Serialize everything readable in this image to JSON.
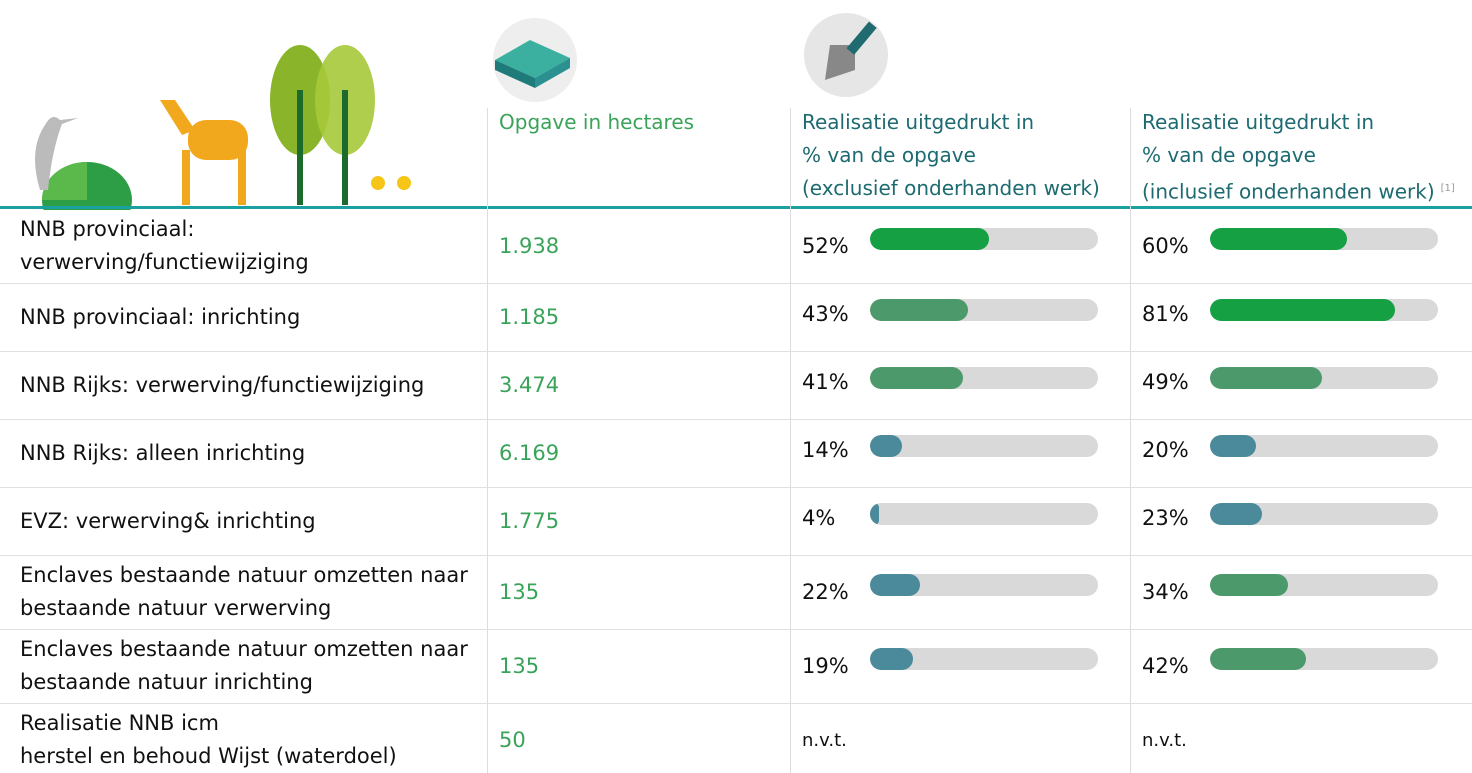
{
  "header": {
    "columns": [
      {
        "lines": [
          "Opgave in hectares"
        ]
      },
      {
        "lines": [
          "Realisatie uitgedrukt in",
          "% van de opgave",
          "(exclusief onderhanden werk)"
        ]
      },
      {
        "lines": [
          "Realisatie uitgedrukt in",
          "% van de opgave",
          "(inclusief onderhanden werk)"
        ],
        "note": "[1]"
      }
    ]
  },
  "table": {
    "rows": [
      {
        "label": [
          "NNB provinciaal:",
          "verwerving/functiewijziging"
        ],
        "hectares": "1.938",
        "excl": {
          "value": 52,
          "label": "52%",
          "color": "#15a044"
        },
        "incl": {
          "value": 60,
          "label": "60%",
          "color": "#15a044"
        }
      },
      {
        "label": [
          "NNB provinciaal: inrichting"
        ],
        "hectares": "1.185",
        "excl": {
          "value": 43,
          "label": "43%",
          "color": "#4c9a6c"
        },
        "incl": {
          "value": 81,
          "label": "81%",
          "color": "#15a044"
        }
      },
      {
        "label": [
          "NNB Rijks: verwerving/functiewijziging"
        ],
        "hectares": "3.474",
        "excl": {
          "value": 41,
          "label": "41%",
          "color": "#4c9a6c"
        },
        "incl": {
          "value": 49,
          "label": "49%",
          "color": "#4c9a6c"
        }
      },
      {
        "label": [
          "NNB Rijks: alleen inrichting"
        ],
        "hectares": "6.169",
        "excl": {
          "value": 14,
          "label": "14%",
          "color": "#4a8a9b"
        },
        "incl": {
          "value": 20,
          "label": "20%",
          "color": "#4a8a9b"
        }
      },
      {
        "label": [
          "EVZ: verwerving& inrichting"
        ],
        "hectares": "1.775",
        "excl": {
          "value": 4,
          "label": "4%",
          "color": "#4a8a9b"
        },
        "incl": {
          "value": 23,
          "label": "23%",
          "color": "#4a8a9b"
        }
      },
      {
        "label": [
          "Enclaves bestaande natuur omzetten naar",
          "bestaande natuur verwerving"
        ],
        "hectares": "135",
        "excl": {
          "value": 22,
          "label": "22%",
          "color": "#4a8a9b"
        },
        "incl": {
          "value": 34,
          "label": "34%",
          "color": "#4c9a6c"
        }
      },
      {
        "label": [
          "Enclaves bestaande natuur omzetten naar",
          "bestaande natuur inrichting"
        ],
        "hectares": "135",
        "excl": {
          "value": 19,
          "label": "19%",
          "color": "#4a8a9b"
        },
        "incl": {
          "value": 42,
          "label": "42%",
          "color": "#4c9a6c"
        }
      },
      {
        "label": [
          "Realisatie NNB icm",
          "herstel en behoud Wijst (waterdoel)"
        ],
        "hectares": "50",
        "excl": "n.v.t.",
        "incl": "n.v.t."
      }
    ]
  }
}
